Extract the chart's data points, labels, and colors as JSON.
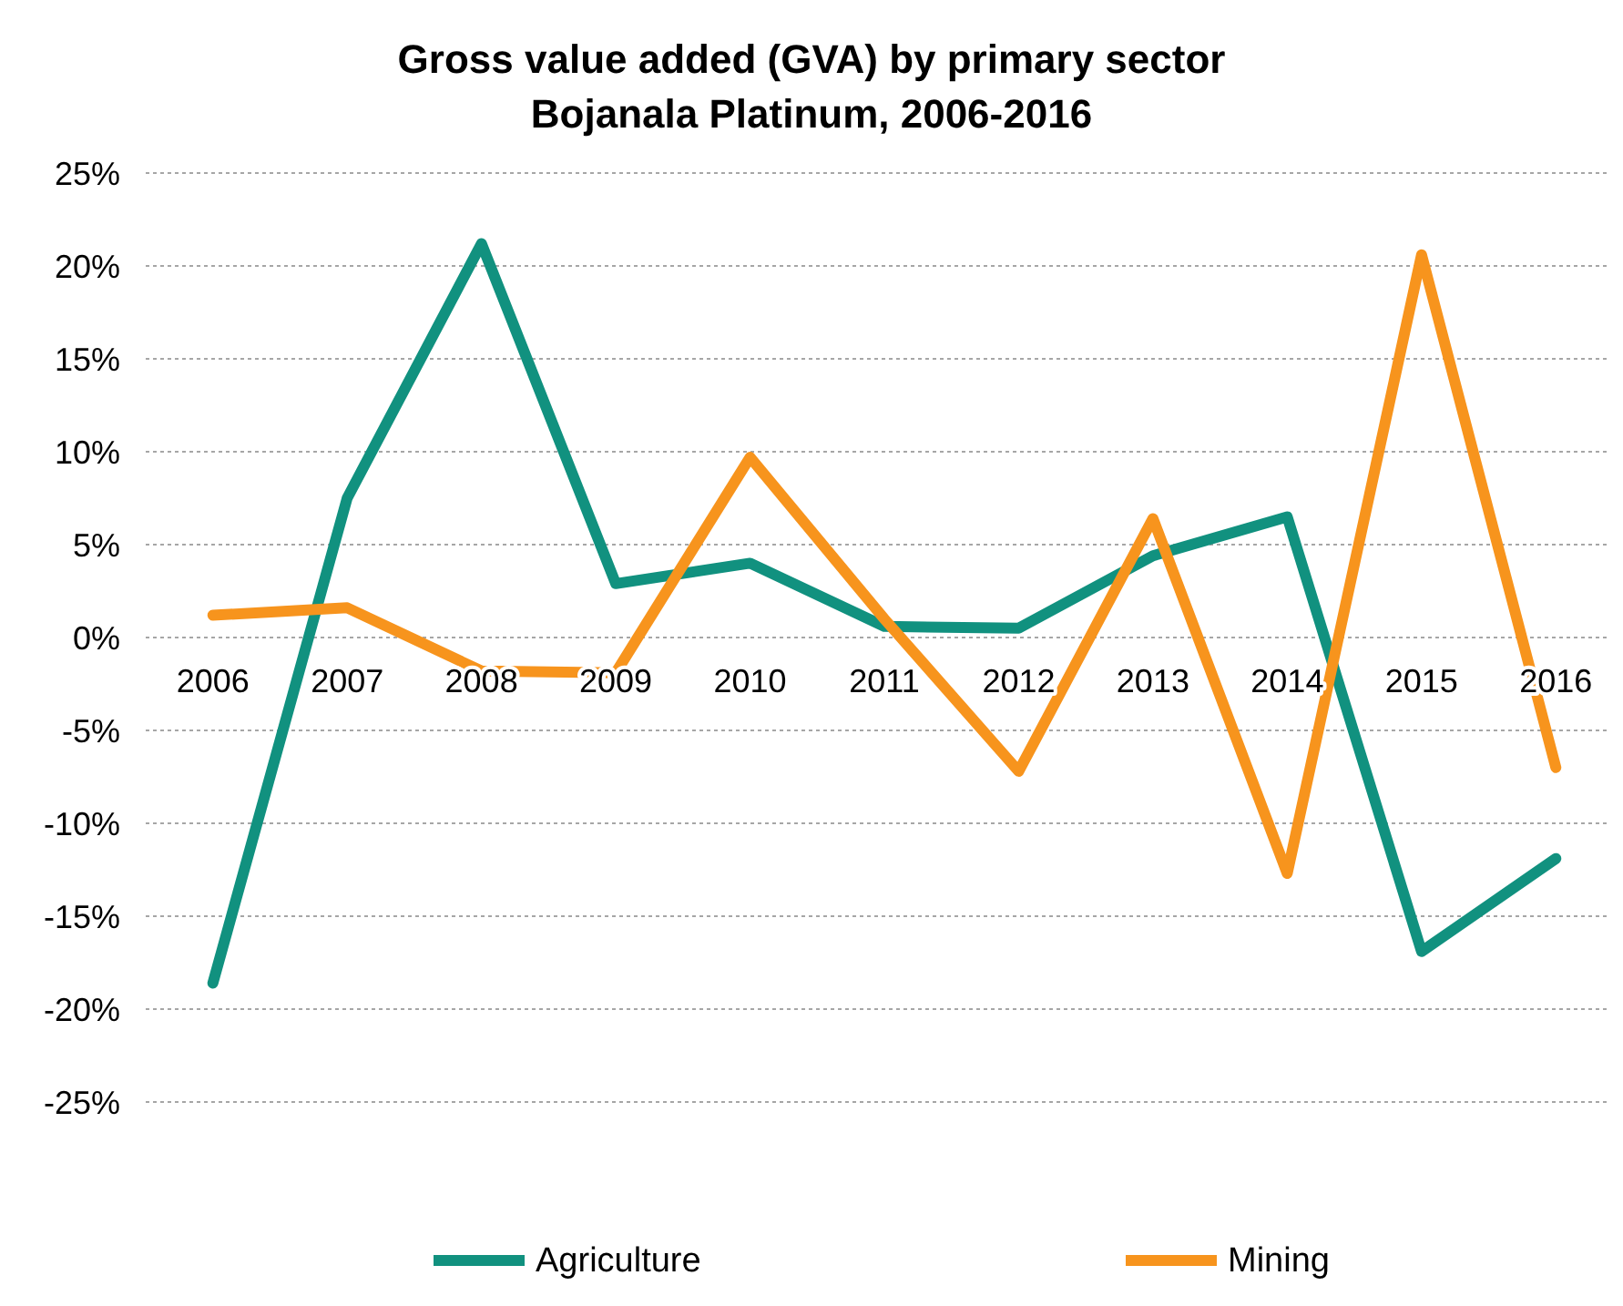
{
  "chart_data": {
    "type": "line",
    "title": "Gross value added (GVA) by primary sector\nBojanala Platinum, 2006-2016",
    "categories": [
      "2006",
      "2007",
      "2008",
      "2009",
      "2010",
      "2011",
      "2012",
      "2013",
      "2014",
      "2015",
      "2016"
    ],
    "series": [
      {
        "name": "Agriculture",
        "color": "#11917f",
        "values": [
          -18.6,
          7.5,
          21.2,
          2.9,
          4.0,
          0.6,
          0.5,
          4.4,
          6.5,
          -16.9,
          -11.9
        ]
      },
      {
        "name": "Mining",
        "color": "#f7941d",
        "values": [
          1.2,
          1.6,
          -1.8,
          -1.9,
          9.7,
          1.0,
          -7.2,
          6.4,
          -12.7,
          20.6,
          -7.0
        ]
      }
    ],
    "ylim": [
      -25,
      25
    ],
    "yticks": [
      {
        "value": -25,
        "label": "-25%"
      },
      {
        "value": -20,
        "label": "-20%"
      },
      {
        "value": -15,
        "label": "-15%"
      },
      {
        "value": -10,
        "label": "-10%"
      },
      {
        "value": -5,
        "label": "-5%"
      },
      {
        "value": 0,
        "label": "0%"
      },
      {
        "value": 5,
        "label": "5%"
      },
      {
        "value": 10,
        "label": "10%"
      },
      {
        "value": 15,
        "label": "15%"
      },
      {
        "value": 20,
        "label": "20%"
      },
      {
        "value": 25,
        "label": "25%"
      }
    ],
    "grid": "y",
    "legend": "bottom",
    "marker": "none",
    "line_style": "solid"
  }
}
